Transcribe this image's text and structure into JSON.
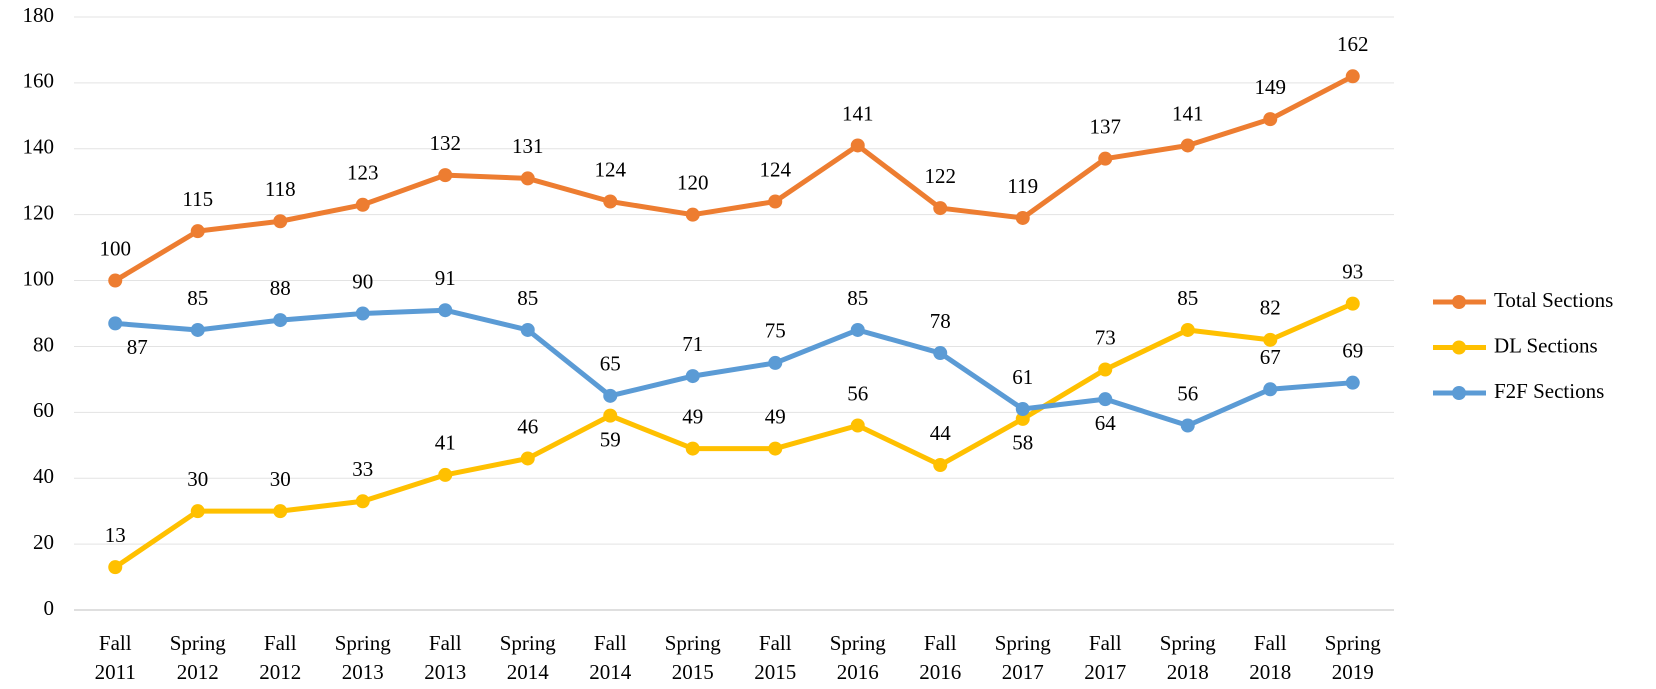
{
  "chart_data": {
    "type": "line",
    "categories": [
      "Fall 2011",
      "Spring 2012",
      "Fall 2012",
      "Spring 2013",
      "Fall 2013",
      "Spring 2014",
      "Fall 2014",
      "Spring 2015",
      "Fall 2015",
      "Spring 2016",
      "Fall 2016",
      "Spring 2017",
      "Fall 2017",
      "Spring 2018",
      "Fall 2018",
      "Spring 2019"
    ],
    "series": [
      {
        "name": "Total Sections",
        "color": "#ED7D31",
        "values": [
          100,
          115,
          118,
          123,
          132,
          131,
          124,
          120,
          124,
          141,
          122,
          119,
          137,
          141,
          149,
          162
        ]
      },
      {
        "name": "DL Sections",
        "color": "#FFC000",
        "values": [
          13,
          30,
          30,
          33,
          41,
          46,
          59,
          49,
          49,
          56,
          44,
          58,
          73,
          85,
          82,
          93
        ]
      },
      {
        "name": "F2F Sections",
        "color": "#5B9BD5",
        "values": [
          87,
          85,
          88,
          90,
          91,
          85,
          65,
          71,
          75,
          85,
          78,
          61,
          64,
          56,
          67,
          69
        ]
      }
    ],
    "ylim": [
      0,
      180
    ],
    "yticks": [
      0,
      20,
      40,
      60,
      80,
      100,
      120,
      140,
      160,
      180
    ],
    "grid": true,
    "legend": "right"
  }
}
